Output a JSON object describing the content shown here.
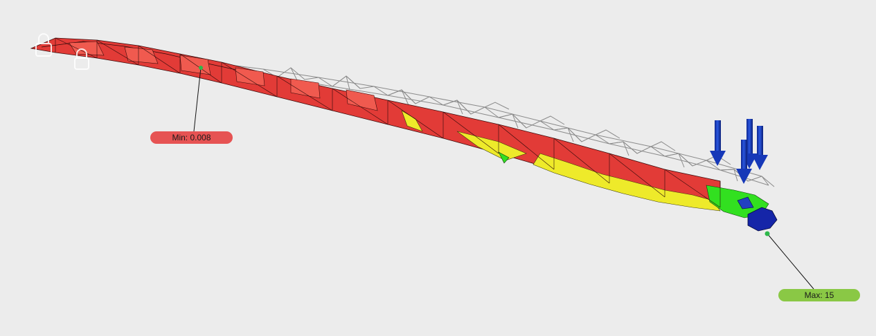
{
  "viewport": {
    "background": "#ececec"
  },
  "colors": {
    "low": "#e23b37",
    "low_light": "#f05a4f",
    "mid": "#eeea2a",
    "high": "#32e020",
    "max": "#1525a8",
    "wireframe": "#8a8a8a",
    "load_arrow": "#1638b8"
  },
  "result_legend": {
    "min_label": "Min: 0.008",
    "max_label": "Max: 15",
    "min_color": "#e65353",
    "max_color": "#8ac845"
  },
  "icons": [
    "lock-icon",
    "lock-icon"
  ],
  "loads": {
    "count": 4,
    "icon": "down-arrow-icon"
  }
}
